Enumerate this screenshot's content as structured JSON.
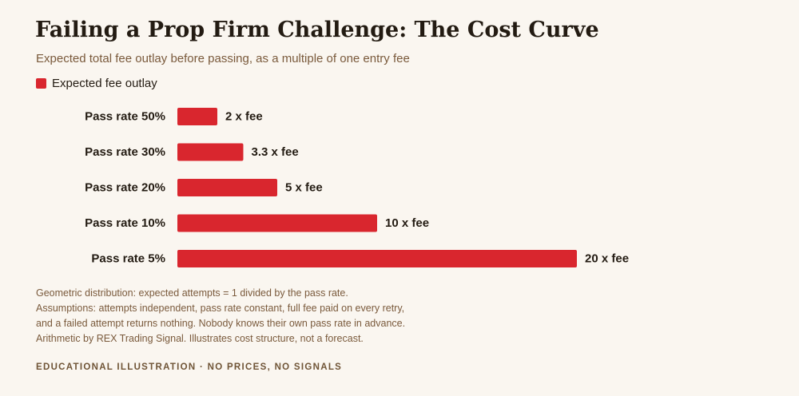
{
  "header": {
    "title": "Failing a Prop Firm Challenge: The Cost Curve",
    "subtitle": "Expected total fee outlay before passing, as a multiple of one entry fee"
  },
  "colors": {
    "bar": "#d9262e",
    "background": "#faf6f0",
    "text": "#231b12",
    "muted": "#7a5a3c"
  },
  "chart_data": {
    "type": "bar",
    "orientation": "horizontal",
    "categories": [
      "Pass rate 50%",
      "Pass rate 30%",
      "Pass rate 20%",
      "Pass rate 10%",
      "Pass rate 5%"
    ],
    "series": [
      {
        "name": "Expected fee outlay",
        "values": [
          2,
          3.3,
          5,
          10,
          20
        ],
        "data_labels": [
          "2 x fee",
          "3.3 x fee",
          "5 x fee",
          "10 x fee",
          "20 x fee"
        ]
      }
    ],
    "title": "Failing a Prop Firm Challenge: The Cost Curve",
    "subtitle": "Expected total fee outlay before passing, as a multiple of one entry fee",
    "xlim": [
      0,
      20
    ],
    "grid": false,
    "legend_position": "top-left"
  },
  "footnotes": [
    "Geometric distribution: expected attempts = 1 divided by the pass rate.",
    "Assumptions: attempts independent, pass rate constant, full fee paid on every retry,",
    "and a failed attempt returns nothing. Nobody knows their own pass rate in advance.",
    "Arithmetic by REX Trading Signal. Illustrates cost structure, not a forecast."
  ],
  "footer": {
    "tag": "EDUCATIONAL ILLUSTRATION · NO PRICES, NO SIGNALS"
  }
}
